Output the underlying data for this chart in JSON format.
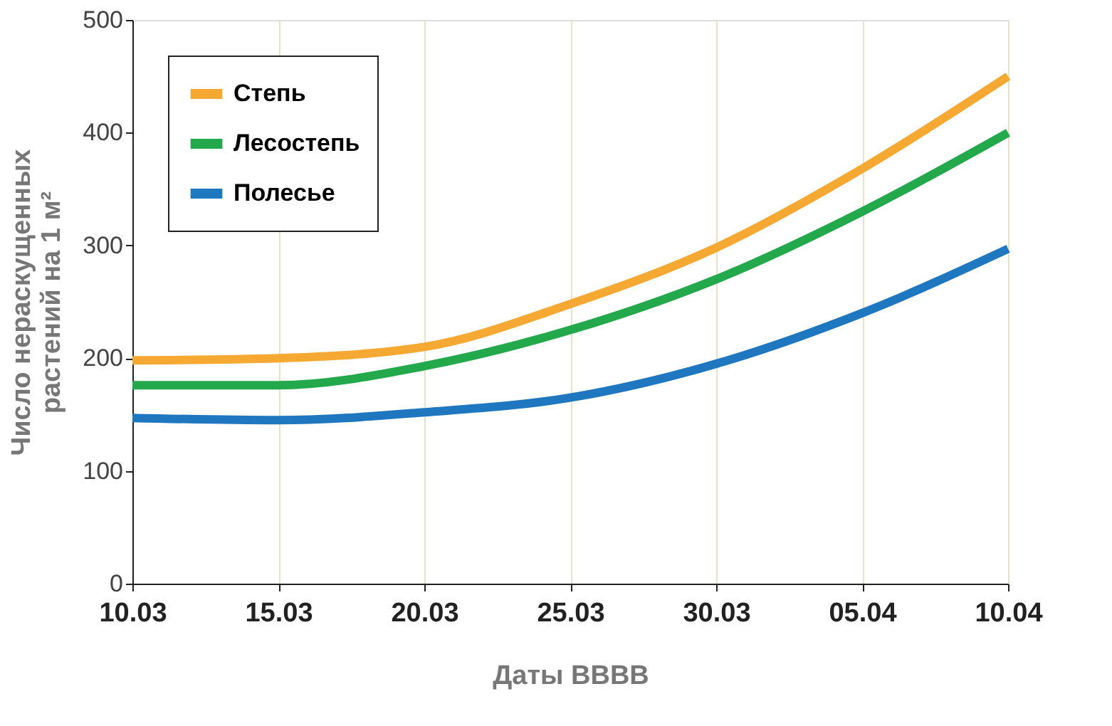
{
  "chart_data": {
    "type": "line",
    "xlabel": "Даты BBBB",
    "ylabel": "Число нераскущенных\nрастений на 1 м²",
    "categories": [
      "10.03",
      "15.03",
      "20.03",
      "25.03",
      "30.03",
      "05.04",
      "10.04"
    ],
    "series": [
      {
        "name": "Степь",
        "color": "#f5a832",
        "values": [
          198,
          200,
          210,
          248,
          298,
          368,
          450
        ]
      },
      {
        "name": "Лесостепь",
        "color": "#23a84b",
        "values": [
          176,
          176,
          193,
          225,
          270,
          330,
          400
        ]
      },
      {
        "name": "Полесье",
        "color": "#1f77c0",
        "values": [
          147,
          145,
          152,
          165,
          195,
          240,
          297
        ]
      }
    ],
    "ylim": [
      0,
      500
    ],
    "yticks": [
      0,
      100,
      200,
      300,
      400,
      500
    ],
    "grid": "x",
    "legend": "top left",
    "marker": "none",
    "line_style": "solid"
  }
}
